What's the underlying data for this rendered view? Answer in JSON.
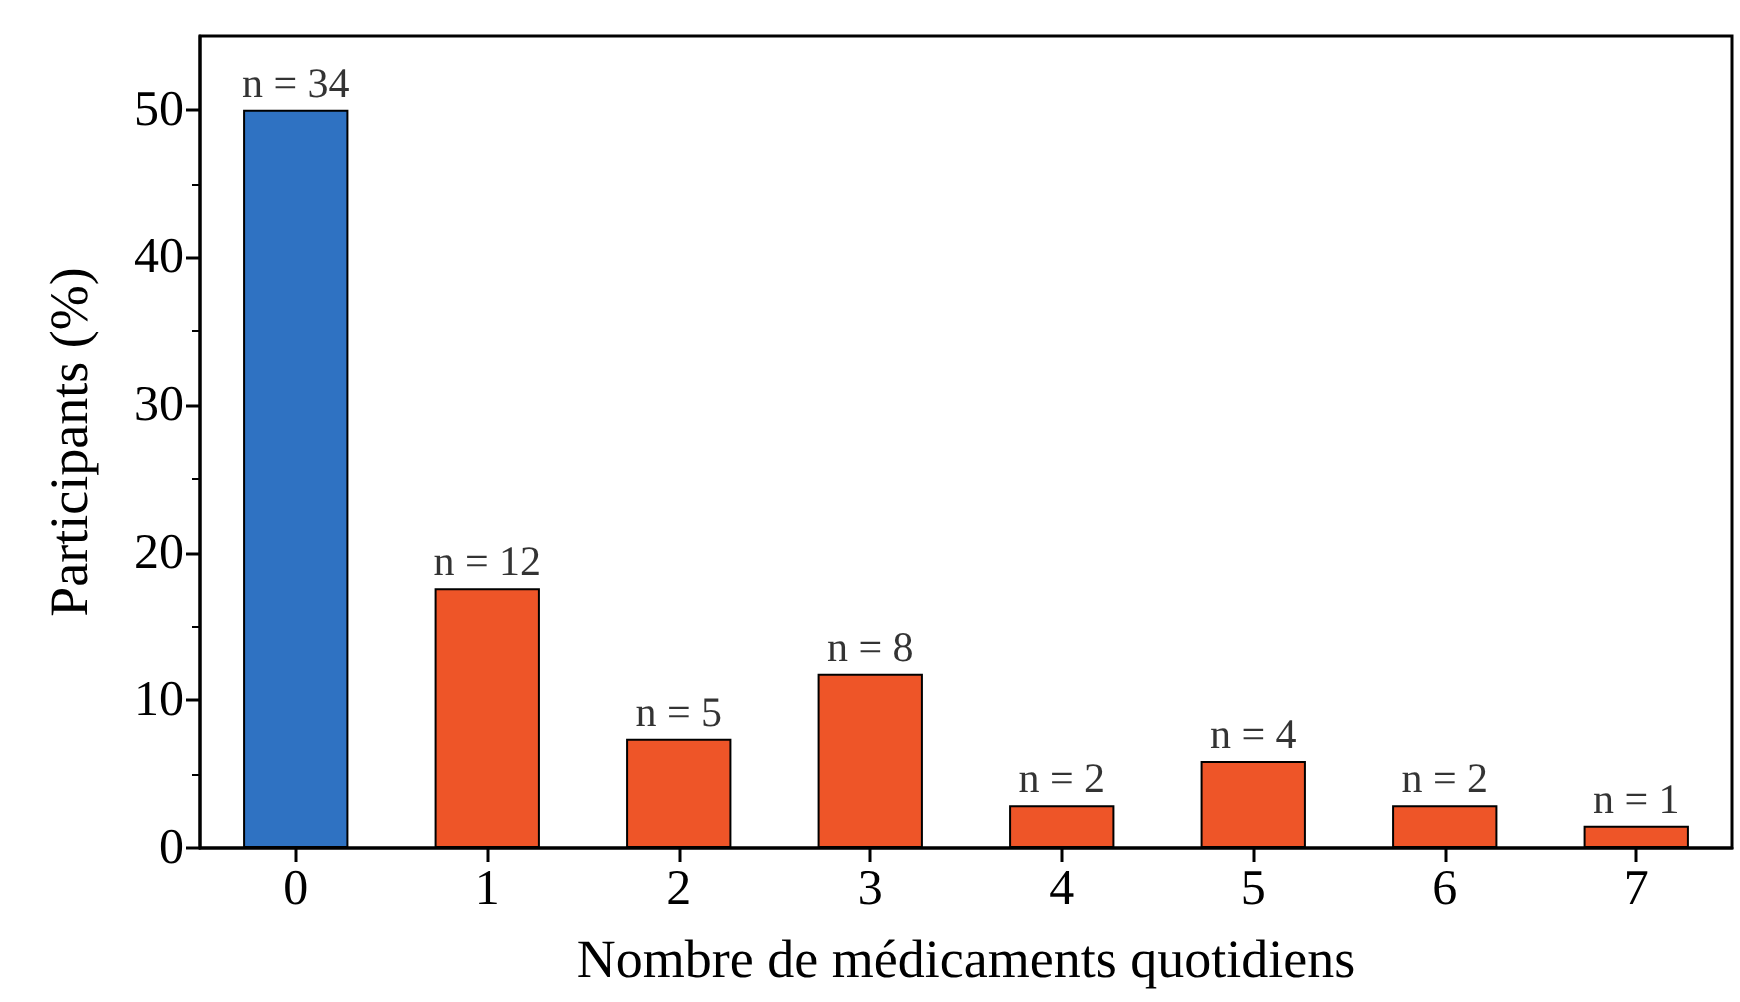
{
  "chart_data": {
    "type": "bar",
    "xlabel": "Nombre de médicaments quotidiens",
    "ylabel": "Participants (%)",
    "categories": [
      "0",
      "1",
      "2",
      "3",
      "4",
      "5",
      "6",
      "7"
    ],
    "values": [
      50,
      17.6,
      7.4,
      11.8,
      2.9,
      5.9,
      2.9,
      1.5
    ],
    "colors": [
      "#2f72c2",
      "#ee5528",
      "#ee5528",
      "#ee5528",
      "#ee5528",
      "#ee5528",
      "#ee5528",
      "#ee5528"
    ],
    "annotations": [
      {
        "text": "n = 34",
        "x": "0",
        "y": 50
      },
      {
        "text": "n = 12",
        "x": "1",
        "y": 17.6
      },
      {
        "text": "n = 5",
        "x": "2",
        "y": 7.4
      },
      {
        "text": "n = 8",
        "x": "3",
        "y": 11.8
      },
      {
        "text": "n = 2",
        "x": "4",
        "y": 2.9
      },
      {
        "text": "n = 4",
        "x": "5",
        "y": 5.9
      },
      {
        "text": "n = 2",
        "x": "6",
        "y": 2.9
      },
      {
        "text": "n = 1",
        "x": "7",
        "y": 1.5
      }
    ],
    "ylim": [
      0,
      55
    ],
    "yticks": [
      0,
      10,
      20,
      30,
      40,
      50
    ],
    "grid": false
  }
}
